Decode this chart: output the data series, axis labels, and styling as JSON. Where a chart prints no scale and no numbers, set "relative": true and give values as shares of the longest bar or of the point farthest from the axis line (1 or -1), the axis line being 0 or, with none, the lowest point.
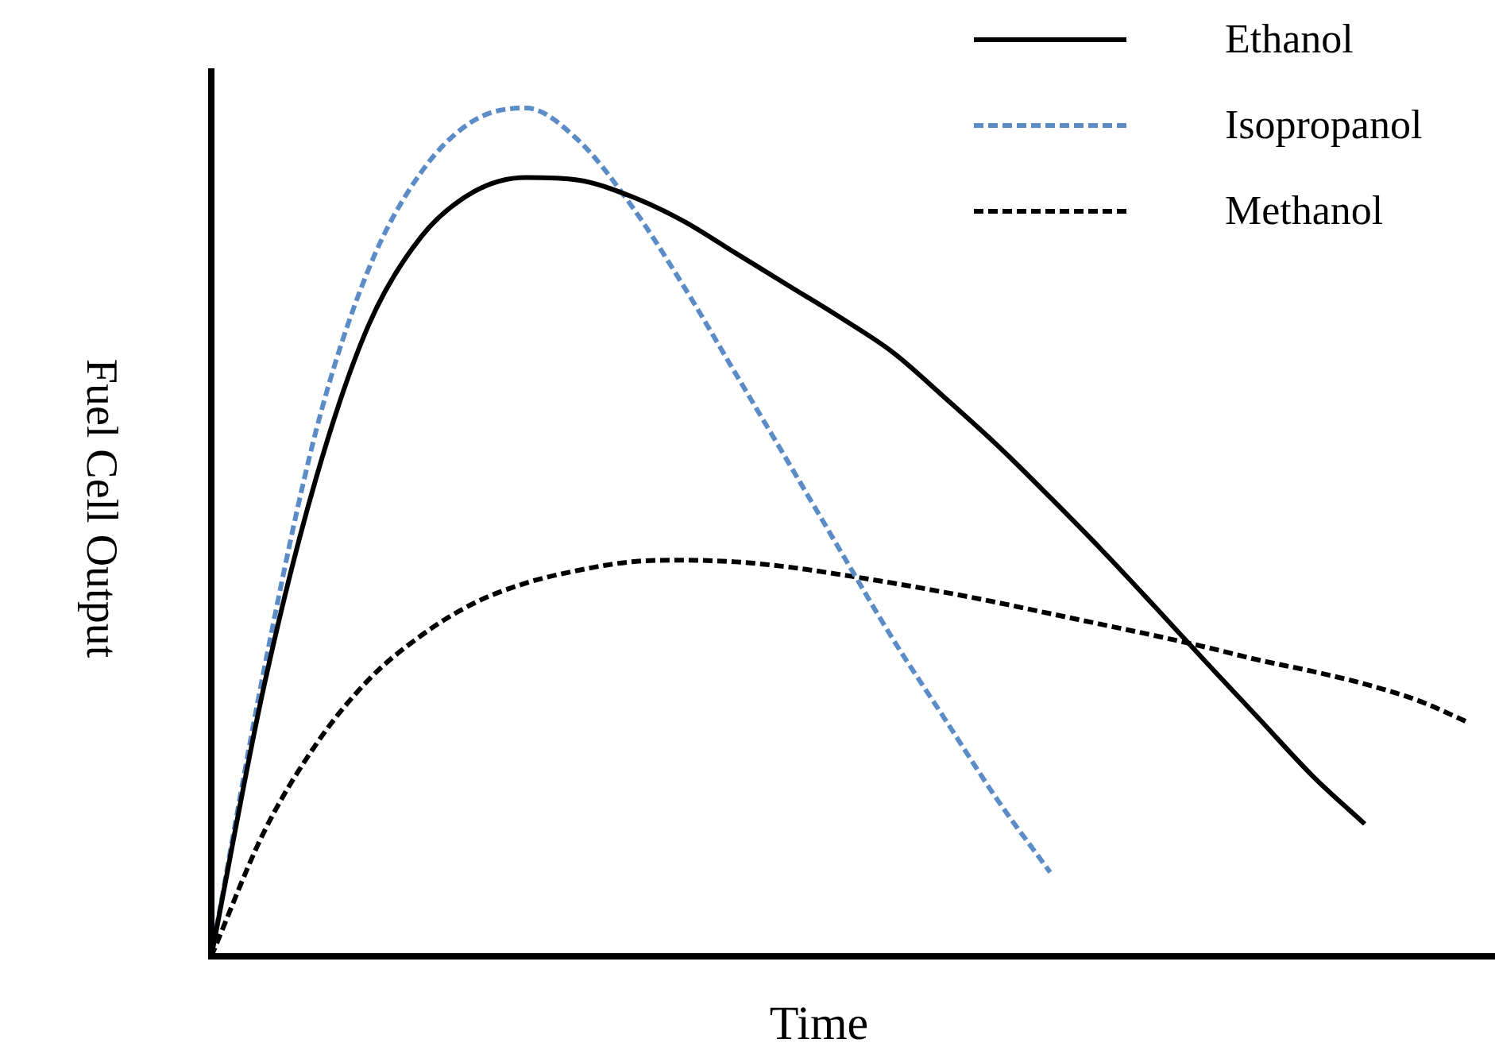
{
  "chart_data": {
    "type": "line",
    "relative": true,
    "xlabel": "Time",
    "ylabel": "Fuel Cell Output",
    "legend": "top right",
    "grid": false,
    "marker": "none",
    "categories": [
      null,
      null,
      null,
      null,
      null,
      null,
      null,
      null,
      null,
      null,
      null,
      null,
      null,
      null,
      null,
      null,
      null,
      null,
      null,
      null,
      null,
      null,
      null,
      null,
      null
    ],
    "series": [
      {
        "name": "Ethanol",
        "color": "#000000",
        "line_style": "solid",
        "values": [
          0,
          0.317,
          0.564,
          0.744,
          0.848,
          0.901,
          0.918,
          0.915,
          0.896,
          0.867,
          0.829,
          0.791,
          0.753,
          0.712,
          0.658,
          0.602,
          0.541,
          0.478,
          0.412,
          0.345,
          0.279,
          0.213,
          0.156,
          null,
          null
        ]
      },
      {
        "name": "Isopropanol",
        "color": "#5b8cc8",
        "line_style": "dashed",
        "values": [
          0,
          0.336,
          0.62,
          0.81,
          0.924,
          0.985,
          1,
          0.962,
          0.886,
          0.791,
          0.687,
          0.583,
          0.478,
          0.374,
          0.279,
          0.184,
          0.099,
          null,
          null,
          null,
          null,
          null,
          null,
          null,
          null
        ]
      },
      {
        "name": "Methanol",
        "color": "#000000",
        "line_style": "dashed",
        "values": [
          0,
          0.146,
          0.25,
          0.326,
          0.378,
          0.416,
          0.44,
          0.455,
          0.465,
          0.467,
          0.465,
          0.459,
          0.45,
          0.44,
          0.429,
          0.417,
          0.404,
          0.391,
          0.378,
          0.364,
          0.349,
          0.336,
          0.321,
          0.302,
          0.275
        ]
      }
    ]
  }
}
